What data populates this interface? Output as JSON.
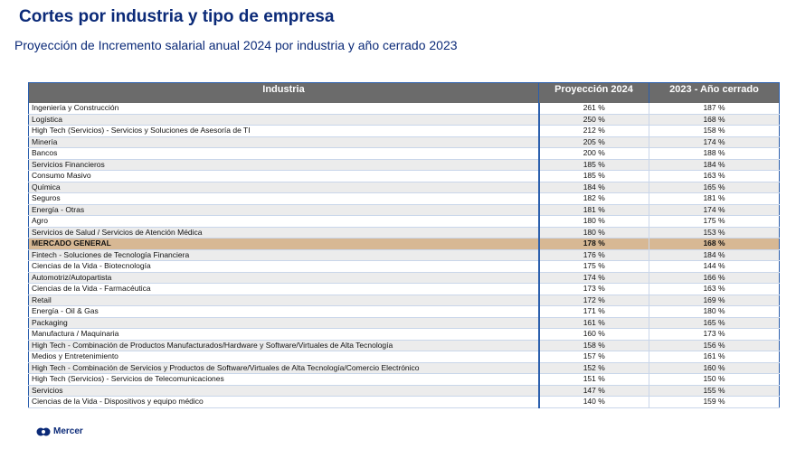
{
  "header": {
    "title": "Cortes por industria y tipo de empresa",
    "subtitle": "Proyección de Incremento salarial anual 2024 por industria y año cerrado 2023"
  },
  "table": {
    "columns": [
      "Industria",
      "Proyección 2024",
      "2023 - Año cerrado"
    ],
    "highlighted_row": 12,
    "rows": [
      [
        "Ingeniería y Construcción",
        "261 %",
        "187 %"
      ],
      [
        "Logística",
        "250 %",
        "168 %"
      ],
      [
        "High Tech (Servicios) - Servicios y Soluciones de Asesoría de TI",
        "212 %",
        "158 %"
      ],
      [
        "Minería",
        "205 %",
        "174 %"
      ],
      [
        "Bancos",
        "200 %",
        "188 %"
      ],
      [
        "Servicios Financieros",
        "185 %",
        "184 %"
      ],
      [
        "Consumo Masivo",
        "185 %",
        "163 %"
      ],
      [
        "Química",
        "184 %",
        "165 %"
      ],
      [
        "Seguros",
        "182 %",
        "181 %"
      ],
      [
        "Energía - Otras",
        "181 %",
        "174 %"
      ],
      [
        "Agro",
        "180 %",
        "175 %"
      ],
      [
        "Servicios de Salud / Servicios de Atención Médica",
        "180 %",
        "153 %"
      ],
      [
        "MERCADO GENERAL",
        "178 %",
        "168 %"
      ],
      [
        "Fintech - Soluciones de Tecnología Financiera",
        "176 %",
        "184 %"
      ],
      [
        "Ciencias de la Vida - Biotecnología",
        "175 %",
        "144 %"
      ],
      [
        "Automotriz/Autopartista",
        "174 %",
        "166 %"
      ],
      [
        "Ciencias de la Vida - Farmacéutica",
        "173 %",
        "163 %"
      ],
      [
        "Retail",
        "172 %",
        "169 %"
      ],
      [
        "Energía - Oil & Gas",
        "171 %",
        "180 %"
      ],
      [
        "Packaging",
        "161 %",
        "165 %"
      ],
      [
        "Manufactura / Maquinaria",
        "160 %",
        "173 %"
      ],
      [
        "High Tech - Combinación de Productos Manufacturados/Hardware y Software/Virtuales de Alta Tecnología",
        "158 %",
        "156 %"
      ],
      [
        "Medios y Entretenimiento",
        "157 %",
        "161 %"
      ],
      [
        "High Tech - Combinación de Servicios y Productos de Software/Virtuales de Alta Tecnología/Comercio Electrónico",
        "152 %",
        "160 %"
      ],
      [
        "High Tech (Servicios) - Servicios de Telecomunicaciones",
        "151 %",
        "150 %"
      ],
      [
        "Servicios",
        "147 %",
        "155 %"
      ],
      [
        "Ciencias de la Vida - Dispositivos y equipo médico",
        "140 %",
        "159 %"
      ]
    ]
  },
  "footer": {
    "logo": "Mercer"
  }
}
